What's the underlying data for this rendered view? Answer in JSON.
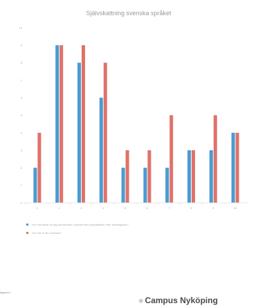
{
  "chart_data": {
    "type": "bar",
    "title": "Självskattning svenska språket",
    "categories": [
      "1",
      "2",
      "3",
      "4",
      "5",
      "6",
      "7",
      "8",
      "9",
      "10"
    ],
    "series": [
      {
        "name": "Hur bra klarar du dig på svenska i kontakt med myndigheter eller arbetsgivare?",
        "values": [
          2,
          9,
          8,
          6,
          2,
          2,
          2,
          3,
          3,
          4
        ],
        "color": "#4a9bd1"
      },
      {
        "name": "Hur bra är din svenska?",
        "values": [
          4,
          9,
          9,
          8,
          3,
          3,
          5,
          3,
          5,
          4
        ],
        "color": "#e0726a"
      }
    ],
    "yticks": [
      0,
      1,
      2,
      3,
      4,
      5,
      6,
      7,
      8,
      9,
      10
    ],
    "ylim": [
      0,
      10
    ],
    "grid": false,
    "legend_position": "bottom"
  },
  "footer": {
    "fragment_text": "ttigeten?",
    "brand_name": "Campus Nyköping",
    "brand_icon": "campus-logo-icon"
  }
}
